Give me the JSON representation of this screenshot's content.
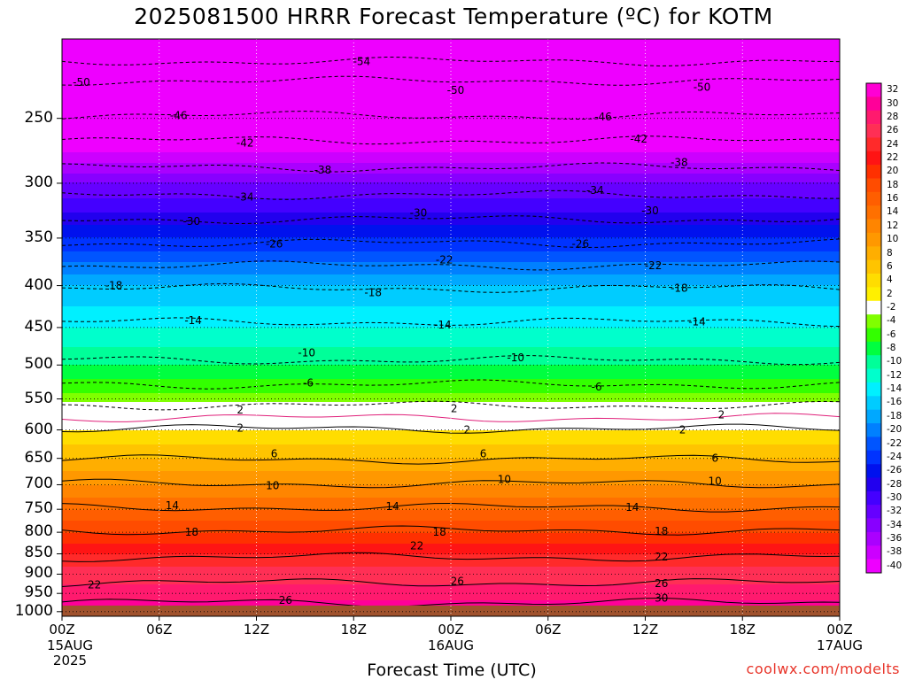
{
  "title": "2025081500 HRRR Forecast Temperature (ºC) for KOTM",
  "chart_data": {
    "type": "heatmap",
    "title": "2025081500 HRRR Forecast Temperature (ºC) for KOTM",
    "xlabel": "Forecast Time (UTC)",
    "ylabel": "",
    "x_ticks": [
      "00Z",
      "06Z",
      "12Z",
      "18Z",
      "00Z",
      "06Z",
      "12Z",
      "18Z",
      "00Z"
    ],
    "x_sub_labels": [
      {
        "tick": 0,
        "lines": [
          "15AUG",
          "2025"
        ]
      },
      {
        "tick": 4,
        "lines": [
          "16AUG"
        ]
      },
      {
        "tick": 8,
        "lines": [
          "17AUG"
        ]
      }
    ],
    "x_range_hours": [
      0,
      48
    ],
    "y_ticks": [
      250,
      300,
      350,
      400,
      450,
      500,
      550,
      600,
      650,
      700,
      750,
      800,
      850,
      900,
      950,
      1000
    ],
    "y_unit": "hPa",
    "y_scale": "log-pressure",
    "y_range": [
      200,
      1013
    ],
    "ground_level_hPa": 983,
    "grid": true,
    "colorbar": {
      "labels": [
        32,
        30,
        28,
        26,
        24,
        22,
        20,
        18,
        16,
        14,
        12,
        10,
        8,
        6,
        4,
        2,
        -2,
        -4,
        -6,
        -8,
        -10,
        -12,
        -14,
        -16,
        -18,
        -20,
        -22,
        -24,
        -26,
        -28,
        -30,
        -32,
        -34,
        -36,
        -38,
        -40
      ],
      "colors": [
        "#ff00d4",
        "#ff0099",
        "#ff1a6e",
        "#ff2f55",
        "#ff2a2a",
        "#ff1414",
        "#ff3000",
        "#ff4c00",
        "#ff5e00",
        "#ff7000",
        "#ff8500",
        "#ff9800",
        "#ffae00",
        "#ffc400",
        "#ffdd00",
        "#fff000",
        "#ffffff",
        "#80ff00",
        "#33ff00",
        "#00ff40",
        "#00ff99",
        "#00ffcc",
        "#00f0ff",
        "#00ccff",
        "#00a8ff",
        "#0080ff",
        "#0055ff",
        "#0033ff",
        "#0011ee",
        "#2200ee",
        "#4400ff",
        "#6600ff",
        "#8800ff",
        "#aa00ff",
        "#cc00ff",
        "#ee00ff"
      ],
      "position": "right"
    },
    "pressure_temperature_profile": [
      {
        "p": 200,
        "t": -55
      },
      {
        "p": 250,
        "t": -46
      },
      {
        "p": 300,
        "t": -34
      },
      {
        "p": 350,
        "t": -26
      },
      {
        "p": 400,
        "t": -18
      },
      {
        "p": 450,
        "t": -14
      },
      {
        "p": 500,
        "t": -10
      },
      {
        "p": 550,
        "t": -5
      },
      {
        "p": 580,
        "t": 0
      },
      {
        "p": 600,
        "t": 2
      },
      {
        "p": 650,
        "t": 6
      },
      {
        "p": 700,
        "t": 10
      },
      {
        "p": 750,
        "t": 14
      },
      {
        "p": 800,
        "t": 18
      },
      {
        "p": 850,
        "t": 22
      },
      {
        "p": 900,
        "t": 25
      },
      {
        "p": 950,
        "t": 27
      },
      {
        "p": 983,
        "t": 29
      }
    ],
    "contours": [
      {
        "value": -54,
        "style": "dashed",
        "p": 213
      },
      {
        "value": -50,
        "style": "dashed",
        "p": 225
      },
      {
        "value": -46,
        "style": "dashed",
        "p": 248
      },
      {
        "value": -42,
        "style": "dashed",
        "p": 266
      },
      {
        "value": -38,
        "style": "dashed",
        "p": 287
      },
      {
        "value": -34,
        "style": "dashed",
        "p": 310
      },
      {
        "value": -30,
        "style": "dashed",
        "p": 332
      },
      {
        "value": -26,
        "style": "dashed",
        "p": 355
      },
      {
        "value": -22,
        "style": "dashed",
        "p": 378
      },
      {
        "value": -18,
        "style": "dashed",
        "p": 403
      },
      {
        "value": -14,
        "style": "dashed",
        "p": 443
      },
      {
        "value": -10,
        "style": "dashed",
        "p": 493
      },
      {
        "value": -6,
        "style": "dashed",
        "p": 528
      },
      {
        "value": -2,
        "style": "dashed",
        "p": 560
      },
      {
        "value": 0,
        "style": "freezing",
        "p": 580
      },
      {
        "value": 2,
        "style": "solid",
        "p": 598
      },
      {
        "value": 6,
        "style": "solid",
        "p": 652
      },
      {
        "value": 10,
        "style": "solid",
        "p": 698
      },
      {
        "value": 14,
        "style": "solid",
        "p": 746
      },
      {
        "value": 18,
        "style": "solid",
        "p": 796
      },
      {
        "value": 22,
        "style": "solid",
        "p": 858
      },
      {
        "value": 26,
        "style": "solid",
        "p": 922
      },
      {
        "value": 30,
        "style": "solid",
        "p": 975
      }
    ],
    "contour_labels": [
      {
        "text": "-54",
        "hour": 18.5,
        "p": 213
      },
      {
        "text": "-50",
        "hour": 1.2,
        "p": 226
      },
      {
        "text": "-50",
        "hour": 24.3,
        "p": 231
      },
      {
        "text": "-50",
        "hour": 39.5,
        "p": 229
      },
      {
        "text": "-46",
        "hour": 7.2,
        "p": 248
      },
      {
        "text": "-46",
        "hour": 33.4,
        "p": 249
      },
      {
        "text": "-42",
        "hour": 11.3,
        "p": 268
      },
      {
        "text": "-42",
        "hour": 35.6,
        "p": 265
      },
      {
        "text": "-38",
        "hour": 16.1,
        "p": 289
      },
      {
        "text": "-38",
        "hour": 38.1,
        "p": 283
      },
      {
        "text": "-34",
        "hour": 11.3,
        "p": 312
      },
      {
        "text": "-34",
        "hour": 32.9,
        "p": 306
      },
      {
        "text": "-30",
        "hour": 8.0,
        "p": 334
      },
      {
        "text": "-30",
        "hour": 22.0,
        "p": 326
      },
      {
        "text": "-30",
        "hour": 36.3,
        "p": 324
      },
      {
        "text": "-26",
        "hour": 13.1,
        "p": 356
      },
      {
        "text": "-26",
        "hour": 32.0,
        "p": 356
      },
      {
        "text": "-22",
        "hour": 23.6,
        "p": 372
      },
      {
        "text": "-22",
        "hour": 36.5,
        "p": 378
      },
      {
        "text": "-18",
        "hour": 3.2,
        "p": 400
      },
      {
        "text": "-18",
        "hour": 19.2,
        "p": 408
      },
      {
        "text": "-18",
        "hour": 38.1,
        "p": 403
      },
      {
        "text": "-14",
        "hour": 8.1,
        "p": 441
      },
      {
        "text": "-14",
        "hour": 23.5,
        "p": 447
      },
      {
        "text": "-14",
        "hour": 39.2,
        "p": 443
      },
      {
        "text": "-10",
        "hour": 15.1,
        "p": 483
      },
      {
        "text": "-10",
        "hour": 28.0,
        "p": 490
      },
      {
        "text": "-6",
        "hour": 15.2,
        "p": 526
      },
      {
        "text": "-6",
        "hour": 33.0,
        "p": 532
      },
      {
        "text": "2",
        "hour": 11.0,
        "p": 567
      },
      {
        "text": "2",
        "hour": 24.2,
        "p": 565
      },
      {
        "text": "2",
        "hour": 40.7,
        "p": 575
      },
      {
        "text": "2",
        "hour": 11.0,
        "p": 597
      },
      {
        "text": "2",
        "hour": 25.0,
        "p": 600
      },
      {
        "text": "2",
        "hour": 38.3,
        "p": 600
      },
      {
        "text": "6",
        "hour": 13.1,
        "p": 642
      },
      {
        "text": "6",
        "hour": 26.0,
        "p": 642
      },
      {
        "text": "6",
        "hour": 40.3,
        "p": 650
      },
      {
        "text": "10",
        "hour": 13.0,
        "p": 702
      },
      {
        "text": "10",
        "hour": 27.3,
        "p": 690
      },
      {
        "text": "10",
        "hour": 40.3,
        "p": 693
      },
      {
        "text": "14",
        "hour": 6.8,
        "p": 742
      },
      {
        "text": "14",
        "hour": 20.4,
        "p": 744
      },
      {
        "text": "14",
        "hour": 35.2,
        "p": 746
      },
      {
        "text": "18",
        "hour": 8.0,
        "p": 800
      },
      {
        "text": "18",
        "hour": 23.3,
        "p": 800
      },
      {
        "text": "18",
        "hour": 37.0,
        "p": 798
      },
      {
        "text": "22",
        "hour": 2.0,
        "p": 927
      },
      {
        "text": "22",
        "hour": 21.9,
        "p": 831
      },
      {
        "text": "22",
        "hour": 37.0,
        "p": 857
      },
      {
        "text": "26",
        "hour": 13.8,
        "p": 969
      },
      {
        "text": "26",
        "hour": 24.4,
        "p": 918
      },
      {
        "text": "26",
        "hour": 37.0,
        "p": 924
      },
      {
        "text": "30",
        "hour": 37.0,
        "p": 963
      }
    ]
  },
  "credit": "coolwx.com/modelts"
}
